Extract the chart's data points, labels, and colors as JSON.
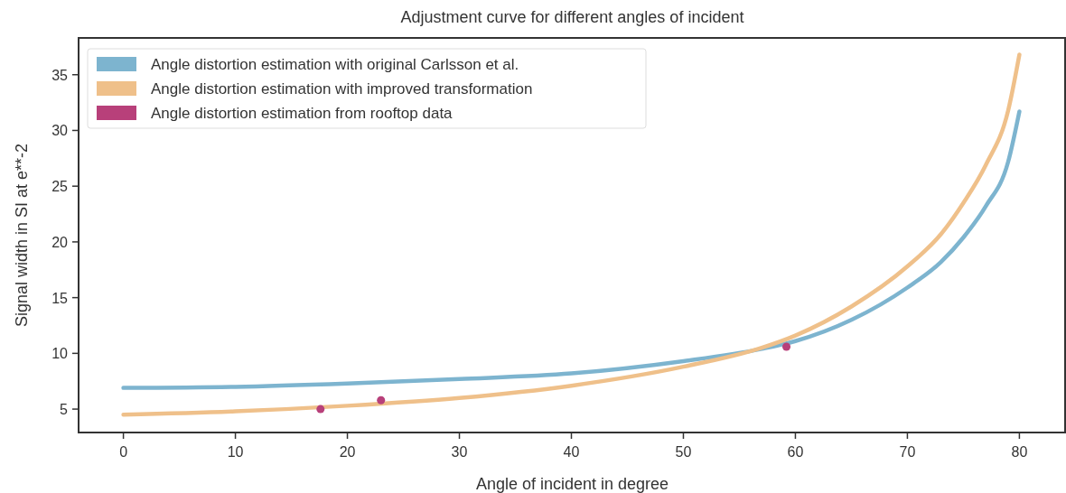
{
  "chart_data": {
    "type": "line",
    "title": "Adjustment curve for different angles of incident",
    "xlabel": "Angle of incident in degree",
    "ylabel": "Signal width in SI at e**-2",
    "xlim": [
      -4,
      84
    ],
    "xticks": [
      0,
      10,
      20,
      30,
      40,
      50,
      60,
      70,
      80
    ],
    "ylim": [
      2.9,
      38.3
    ],
    "yticks": [
      5,
      10,
      15,
      20,
      25,
      30,
      35
    ],
    "grid": false,
    "legend": "top left",
    "marker": "none",
    "series": [
      {
        "name": "Angle distortion estimation with original Carlsson et al.",
        "color": "#7db4cf",
        "x": [
          0,
          10,
          20,
          30,
          40,
          50,
          57,
          60,
          65,
          70,
          73,
          75,
          77,
          79,
          80
        ],
        "values": [
          6.9,
          7.0,
          7.3,
          7.7,
          8.2,
          9.3,
          10.4,
          11.1,
          13.0,
          15.9,
          18.2,
          20.4,
          23.2,
          27.2,
          31.7
        ]
      },
      {
        "name": "Angle distortion estimation with improved transformation",
        "color": "#efc08a",
        "x": [
          0,
          10,
          20,
          30,
          40,
          50,
          57,
          60,
          65,
          70,
          73,
          75,
          77,
          79,
          80
        ],
        "values": [
          4.5,
          4.8,
          5.3,
          6.0,
          7.1,
          8.8,
          10.5,
          11.6,
          14.2,
          17.8,
          20.7,
          23.5,
          26.9,
          31.8,
          36.8
        ]
      },
      {
        "name": "Angle distortion estimation from rooftop data",
        "type": "scatter",
        "marker": "circle",
        "color": "#b8407a",
        "x": [
          17.6,
          23,
          59.2
        ],
        "values": [
          5.0,
          5.8,
          10.6
        ]
      }
    ]
  }
}
